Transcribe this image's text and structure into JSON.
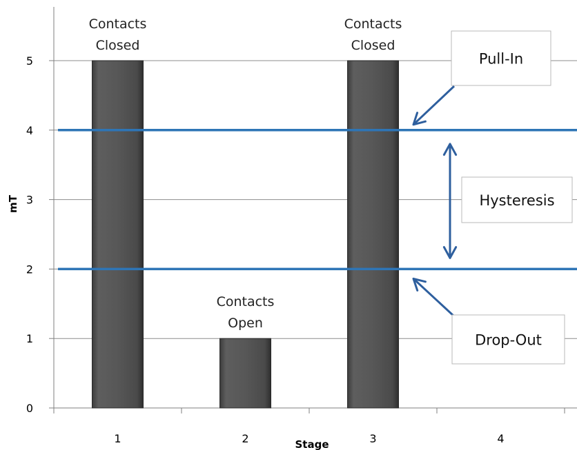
{
  "chart_data": {
    "type": "bar",
    "categories": [
      "1",
      "2",
      "3",
      "4"
    ],
    "values": [
      5,
      1,
      5,
      null
    ],
    "ylabel": "mT",
    "xlabel": "Stage",
    "ylim": [
      0,
      5
    ],
    "yticks": [
      0,
      1,
      2,
      3,
      4,
      5
    ],
    "grid": true,
    "bar_color": "#555555",
    "bar_labels": [
      [
        "Contacts",
        "Closed"
      ],
      [
        "Contacts",
        "Open"
      ],
      [
        "Contacts",
        "Closed"
      ],
      []
    ],
    "reference_lines": [
      {
        "value": 4,
        "color": "#2e75b6"
      },
      {
        "value": 2,
        "color": "#2e75b6"
      }
    ],
    "annotations": [
      {
        "text": "Pull-In",
        "points_to": 4
      },
      {
        "text": "Hysteresis",
        "spans": [
          2,
          4
        ]
      },
      {
        "text": "Drop-Out",
        "points_to": 2
      }
    ],
    "annotation_color": "#2e5f9e"
  }
}
